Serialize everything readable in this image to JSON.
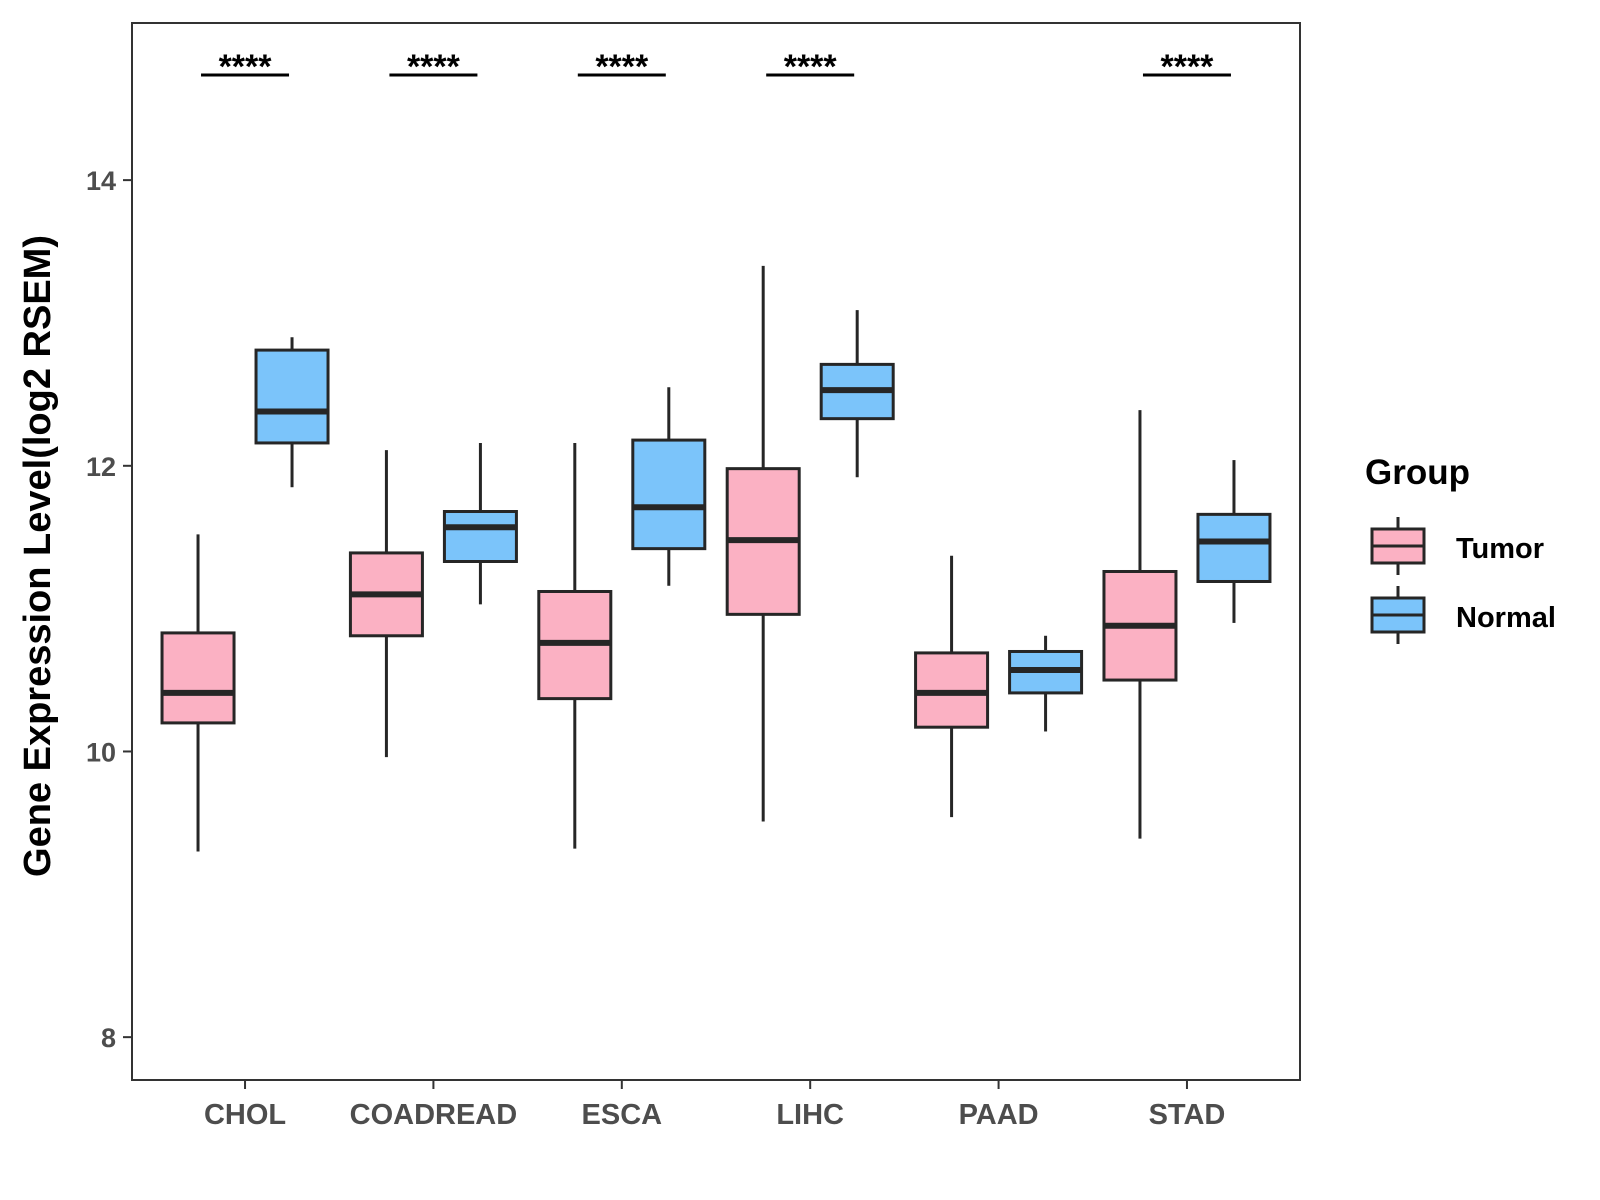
{
  "chart_data": {
    "type": "boxplot",
    "title": "",
    "xlabel": "",
    "ylabel": "Gene Expression Level(log2 RSEM)",
    "ylim": [
      7.7,
      15.1
    ],
    "yticks": [
      "8",
      "10",
      "12",
      "14"
    ],
    "grid": false,
    "categories": [
      "CHOL",
      "COADREAD",
      "ESCA",
      "LIHC",
      "PAAD",
      "STAD"
    ],
    "significance": [
      "****",
      "****",
      "****",
      "****",
      "",
      "****"
    ],
    "legend": {
      "title": "Group",
      "position": "right",
      "entries": [
        "Tumor",
        "Normal"
      ]
    },
    "colors": {
      "Tumor": "#FBB1C3",
      "Normal": "#7BC4FA",
      "outline": "#262626"
    },
    "series": [
      {
        "name": "Tumor",
        "boxes": [
          {
            "min": 9.3,
            "q1": 10.2,
            "median": 10.41,
            "q3": 10.83,
            "max": 11.52
          },
          {
            "min": 9.96,
            "q1": 10.81,
            "median": 11.1,
            "q3": 11.39,
            "max": 12.11
          },
          {
            "min": 9.32,
            "q1": 10.37,
            "median": 10.76,
            "q3": 11.12,
            "max": 12.16
          },
          {
            "min": 9.51,
            "q1": 10.96,
            "median": 11.48,
            "q3": 11.98,
            "max": 13.4
          },
          {
            "min": 9.54,
            "q1": 10.17,
            "median": 10.41,
            "q3": 10.69,
            "max": 11.37
          },
          {
            "min": 9.39,
            "q1": 10.5,
            "median": 10.88,
            "q3": 11.26,
            "max": 12.39
          }
        ]
      },
      {
        "name": "Normal",
        "boxes": [
          {
            "min": 11.85,
            "q1": 12.16,
            "median": 12.38,
            "q3": 12.81,
            "max": 12.9
          },
          {
            "min": 11.03,
            "q1": 11.33,
            "median": 11.57,
            "q3": 11.68,
            "max": 12.16
          },
          {
            "min": 11.16,
            "q1": 11.42,
            "median": 11.71,
            "q3": 12.18,
            "max": 12.55
          },
          {
            "min": 11.92,
            "q1": 12.33,
            "median": 12.53,
            "q3": 12.71,
            "max": 13.09
          },
          {
            "min": 10.14,
            "q1": 10.41,
            "median": 10.57,
            "q3": 10.7,
            "max": 10.81
          },
          {
            "min": 10.9,
            "q1": 11.19,
            "median": 11.47,
            "q3": 11.66,
            "max": 12.04
          }
        ]
      }
    ]
  }
}
